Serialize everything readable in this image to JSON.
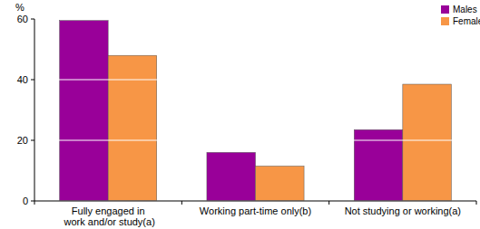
{
  "chart_data": {
    "type": "bar",
    "y_label": "%",
    "categories": [
      "Fully engaged in work and/or study(a)",
      "Working part-time only(b)",
      "Not studying or working(a)"
    ],
    "series": [
      {
        "name": "Males",
        "color": "#990099",
        "values": [
          59.5,
          16,
          23.5
        ]
      },
      {
        "name": "Females",
        "color": "#f79646",
        "values": [
          48,
          11.5,
          38.5
        ]
      }
    ],
    "ylim": [
      0,
      60
    ],
    "yticks": [
      0,
      20,
      40,
      60
    ],
    "grid": true,
    "legend": "top-right"
  }
}
